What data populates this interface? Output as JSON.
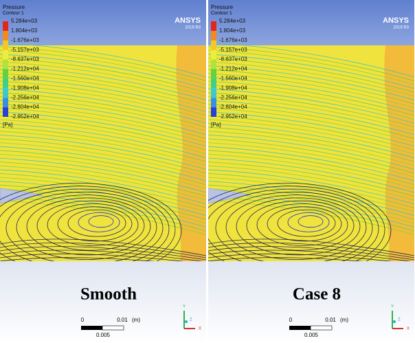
{
  "panels": [
    {
      "legend": {
        "title": "Pressure",
        "subtitle": "Contour 1",
        "labels": [
          "5.284e+03",
          "1.804e+03",
          "-1.676e+03",
          "-5.157e+03",
          "-8.637e+03",
          "-1.212e+04",
          "-1.560e+04",
          "-1.908e+04",
          "-2.256e+04",
          "-2.604e+04",
          "-2.952e+04"
        ],
        "unit": "[Pa]"
      },
      "logo": {
        "name": "ANSYS",
        "version": "2019 R3"
      },
      "caption": "Smooth",
      "scale": {
        "start": "0",
        "end": "0.01",
        "unit": "(m)",
        "mid": "0.005"
      },
      "axes": {
        "y": "Y",
        "x": "X",
        "z": "Z"
      }
    },
    {
      "legend": {
        "title": "Pressure",
        "subtitle": "Contour 1",
        "labels": [
          "5.284e+03",
          "1.804e+03",
          "-1.676e+03",
          "-5.157e+03",
          "-8.637e+03",
          "-1.212e+04",
          "-1.560e+04",
          "-1.908e+04",
          "-2.256e+04",
          "-2.604e+04",
          "-2.952e+04"
        ],
        "unit": "[Pa]"
      },
      "logo": {
        "name": "ANSYS",
        "version": "2019 R3"
      },
      "caption": "Case 8",
      "scale": {
        "start": "0",
        "end": "0.01",
        "unit": "(m)",
        "mid": "0.005"
      },
      "axes": {
        "y": "Y",
        "x": "X",
        "z": "Z"
      }
    }
  ]
}
